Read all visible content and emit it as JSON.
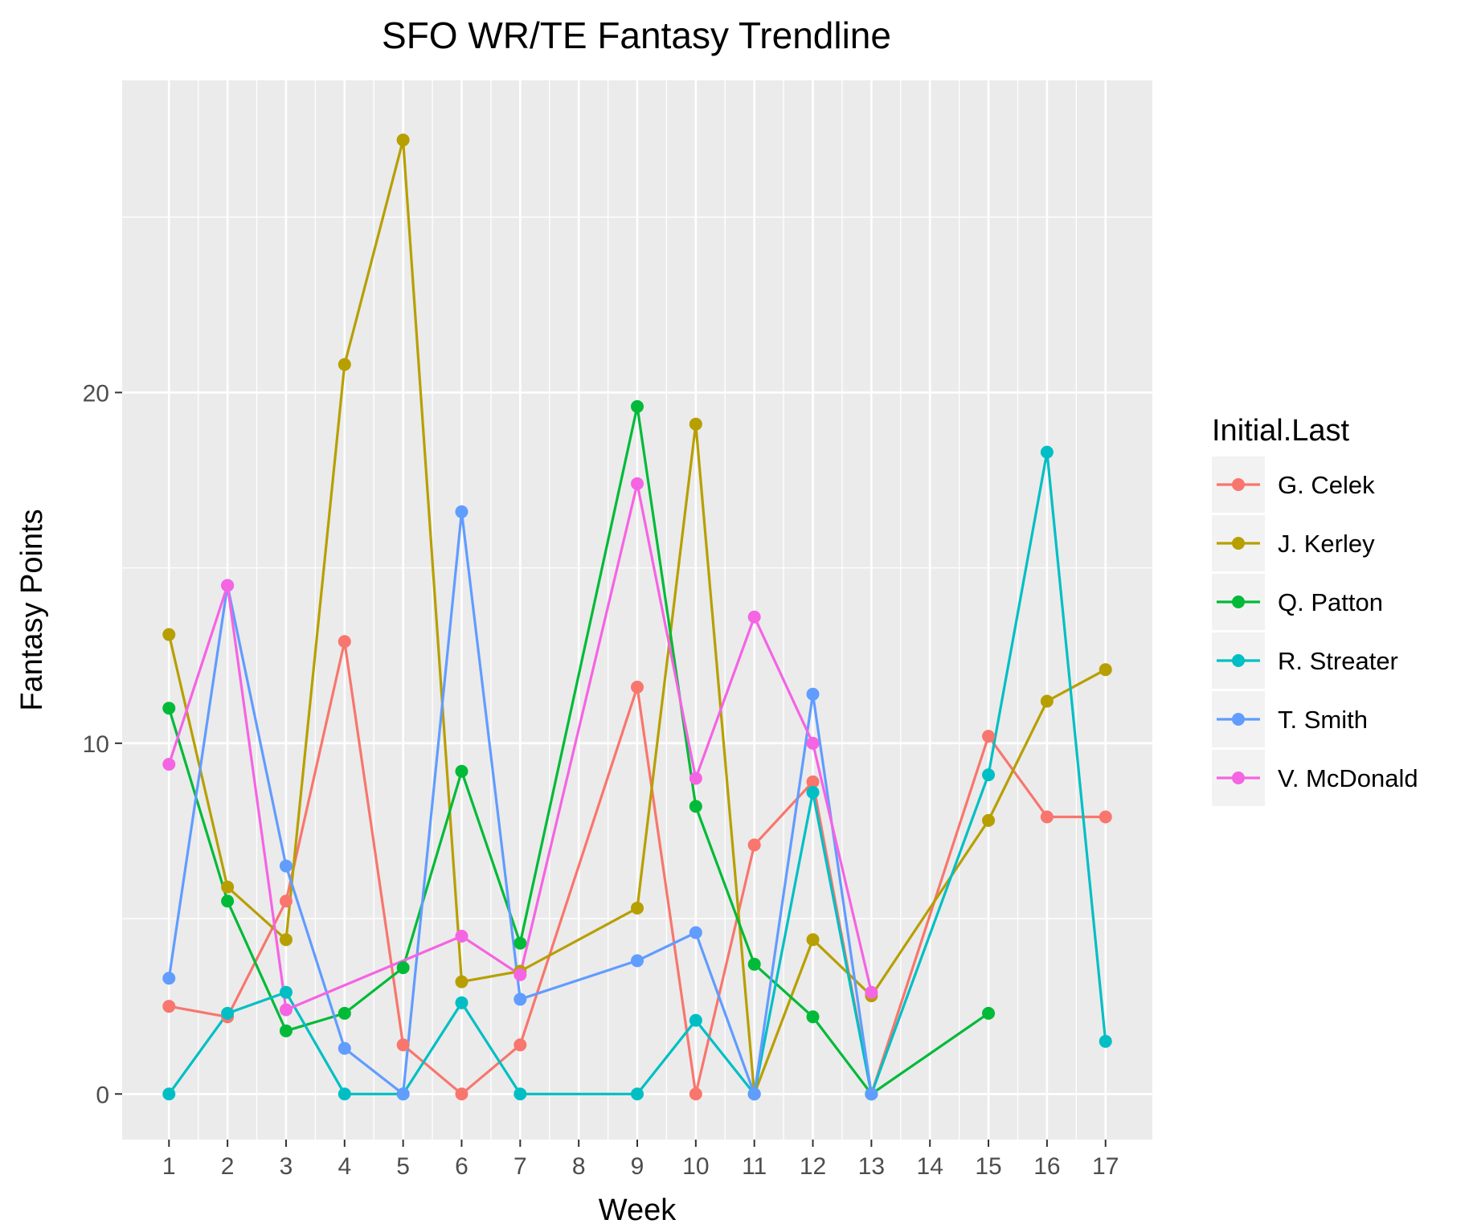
{
  "chart_data": {
    "type": "line",
    "title": "SFO WR/TE Fantasy Trendline",
    "xlabel": "Week",
    "ylabel": "Fantasy Points",
    "x_ticks": [
      "1",
      "2",
      "3",
      "4",
      "5",
      "6",
      "7",
      "8",
      "9",
      "10",
      "11",
      "12",
      "13",
      "14",
      "15",
      "16",
      "17"
    ],
    "y_ticks": [
      0,
      10,
      20
    ],
    "xlim": [
      0.2,
      17.8
    ],
    "ylim": [
      -1.3,
      28.9
    ],
    "grid": true,
    "legend": {
      "title": "Initial.Last",
      "position": "right"
    },
    "series": [
      {
        "name": "G. Celek",
        "color": "#F8766D",
        "points": [
          [
            1,
            2.5
          ],
          [
            2,
            2.2
          ],
          [
            3,
            5.5
          ],
          [
            4,
            12.9
          ],
          [
            5,
            1.4
          ],
          [
            6,
            0
          ],
          [
            7,
            1.4
          ],
          [
            9,
            11.6
          ],
          [
            10,
            0
          ],
          [
            11,
            7.1
          ],
          [
            12,
            8.9
          ],
          [
            13,
            0
          ],
          [
            15,
            10.2
          ],
          [
            16,
            7.9
          ],
          [
            17,
            7.9
          ]
        ]
      },
      {
        "name": "J. Kerley",
        "color": "#B79F00",
        "points": [
          [
            1,
            13.1
          ],
          [
            2,
            5.9
          ],
          [
            3,
            4.4
          ],
          [
            4,
            20.8
          ],
          [
            5,
            27.2
          ],
          [
            6,
            3.2
          ],
          [
            7,
            3.5
          ],
          [
            9,
            5.3
          ],
          [
            10,
            19.1
          ],
          [
            11,
            0
          ],
          [
            12,
            4.4
          ],
          [
            13,
            2.8
          ],
          [
            15,
            7.8
          ],
          [
            16,
            11.2
          ],
          [
            17,
            12.1
          ]
        ]
      },
      {
        "name": "Q. Patton",
        "color": "#00BA38",
        "points": [
          [
            1,
            11.0
          ],
          [
            2,
            5.5
          ],
          [
            3,
            1.8
          ],
          [
            4,
            2.3
          ],
          [
            5,
            3.6
          ],
          [
            6,
            9.2
          ],
          [
            7,
            4.3
          ],
          [
            9,
            19.6
          ],
          [
            10,
            8.2
          ],
          [
            11,
            3.7
          ],
          [
            12,
            2.2
          ],
          [
            13,
            0
          ],
          [
            15,
            2.3
          ]
        ]
      },
      {
        "name": "R. Streater",
        "color": "#00BFC4",
        "points": [
          [
            1,
            0
          ],
          [
            2,
            2.3
          ],
          [
            3,
            2.9
          ],
          [
            4,
            0
          ],
          [
            5,
            0
          ],
          [
            6,
            2.6
          ],
          [
            7,
            0
          ],
          [
            9,
            0
          ],
          [
            10,
            2.1
          ],
          [
            11,
            0
          ],
          [
            12,
            8.6
          ],
          [
            13,
            0
          ],
          [
            15,
            9.1
          ],
          [
            16,
            18.3
          ],
          [
            17,
            1.5
          ]
        ]
      },
      {
        "name": "T. Smith",
        "color": "#619CFF",
        "points": [
          [
            1,
            3.3
          ],
          [
            2,
            14.5
          ],
          [
            3,
            6.5
          ],
          [
            4,
            1.3
          ],
          [
            5,
            0
          ],
          [
            6,
            16.6
          ],
          [
            7,
            2.7
          ],
          [
            9,
            3.8
          ],
          [
            10,
            4.6
          ],
          [
            11,
            0
          ],
          [
            12,
            11.4
          ],
          [
            13,
            0
          ]
        ]
      },
      {
        "name": "V. McDonald",
        "color": "#F564E3",
        "points": [
          [
            1,
            9.4
          ],
          [
            2,
            14.5
          ],
          [
            3,
            2.4
          ],
          [
            6,
            4.5
          ],
          [
            7,
            3.4
          ],
          [
            9,
            17.4
          ],
          [
            10,
            9.0
          ],
          [
            11,
            13.6
          ],
          [
            12,
            10.0
          ],
          [
            13,
            2.9
          ]
        ]
      }
    ]
  }
}
